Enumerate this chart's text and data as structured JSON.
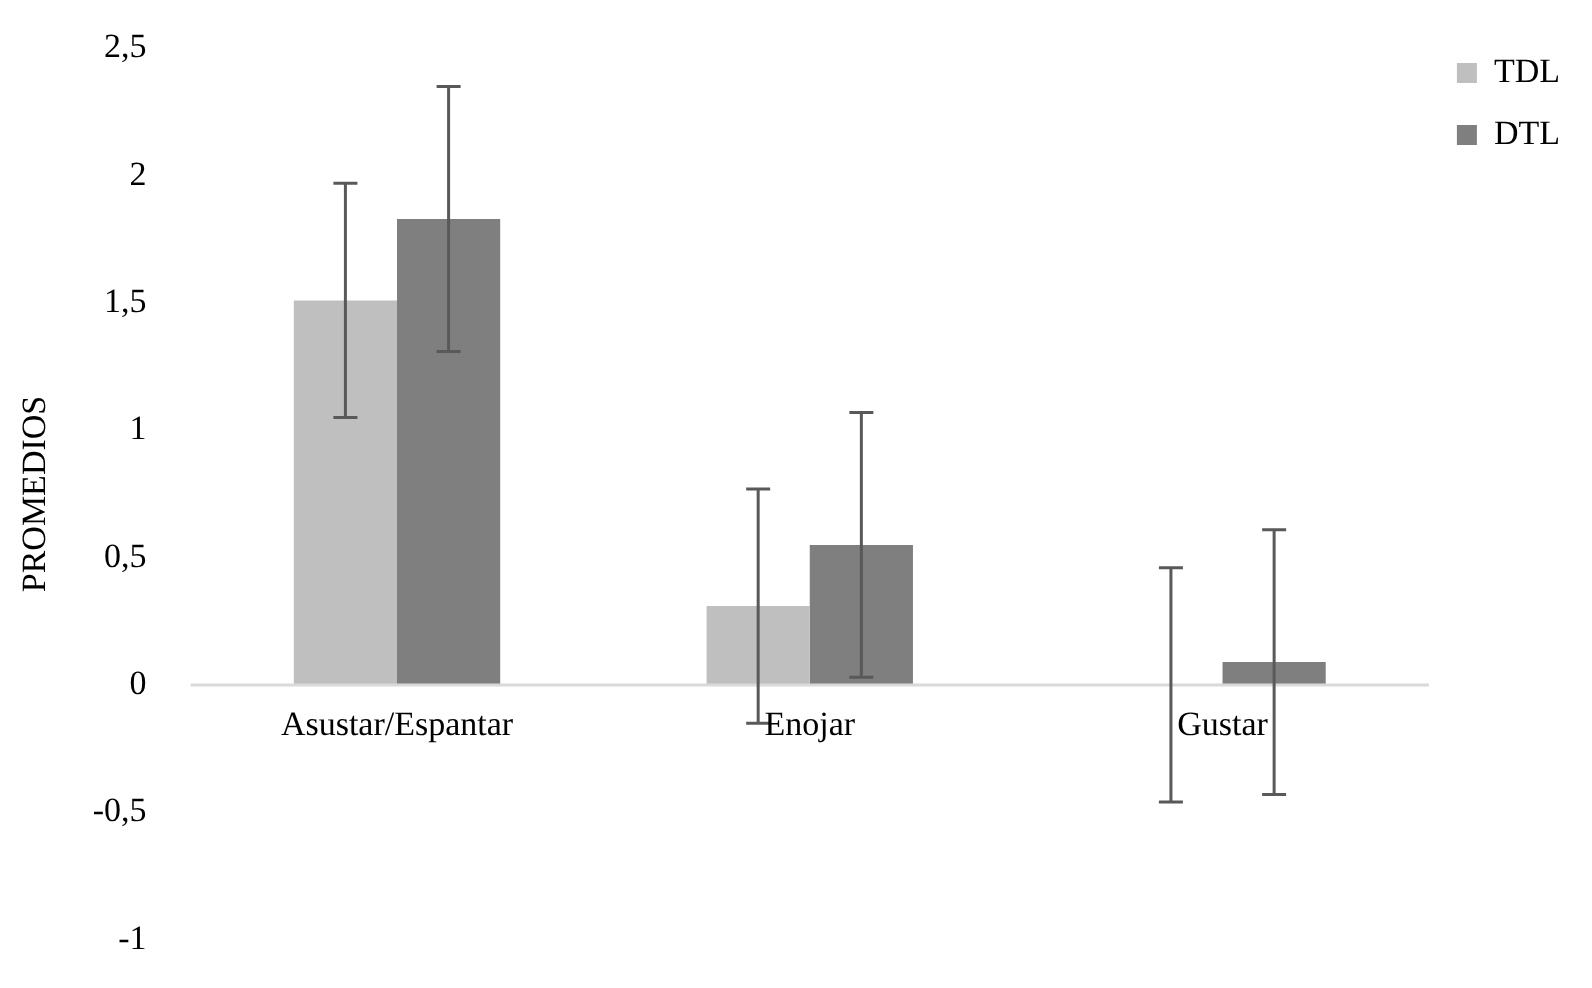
{
  "chart_data": {
    "type": "bar",
    "ylabel": "PROMEDIOS",
    "categories": [
      "Asustar/Espantar",
      "Enojar",
      "Gustar"
    ],
    "series": [
      {
        "name": "TDL",
        "color": "#bfbfbf",
        "values": [
          1.51,
          0.31,
          0
        ],
        "errors": [
          0.46,
          0.46,
          0.46
        ]
      },
      {
        "name": "DTL",
        "color": "#7f7f7f",
        "values": [
          1.83,
          0.55,
          0.09
        ],
        "errors": [
          0.52,
          0.52,
          0.52
        ]
      }
    ],
    "ylim": [
      -1,
      2.5
    ],
    "yticks": [
      {
        "value": -1,
        "label": "-1"
      },
      {
        "value": -0.5,
        "label": "-0,5"
      },
      {
        "value": 0,
        "label": "0"
      },
      {
        "value": 0.5,
        "label": "0,5"
      },
      {
        "value": 1,
        "label": "1"
      },
      {
        "value": 1.5,
        "label": "1,5"
      },
      {
        "value": 2,
        "label": "2"
      },
      {
        "value": 2.5,
        "label": "2,5"
      }
    ],
    "grid": false,
    "legend": "top right"
  }
}
